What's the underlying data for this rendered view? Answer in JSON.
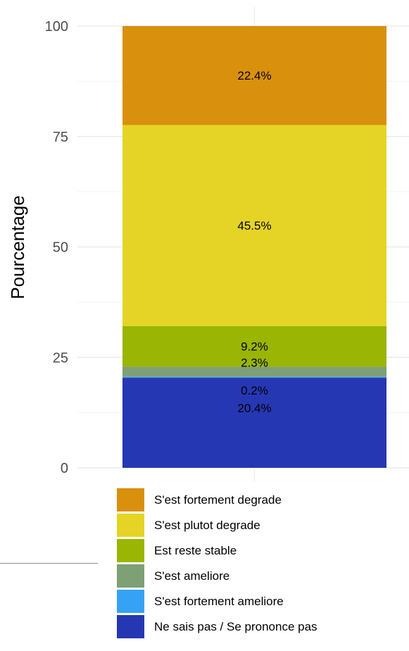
{
  "chart_data": {
    "type": "bar",
    "stacked": true,
    "ylabel": "Pourcentage",
    "xlabel": "",
    "ylim": [
      0,
      100
    ],
    "yticks": [
      0,
      25,
      50,
      75,
      100
    ],
    "grid": true,
    "legend_position": "bottom",
    "series": [
      {
        "name": "Ne sais pas / Se prononce pas",
        "value": 20.4,
        "label": "20.4%",
        "color": "#2637b3"
      },
      {
        "name": "S'est fortement ameliore",
        "value": 0.2,
        "label": "0.2%",
        "color": "#36a2f5"
      },
      {
        "name": "S'est ameliore",
        "value": 2.3,
        "label": "2.3%",
        "color": "#7da075"
      },
      {
        "name": "Est reste stable",
        "value": 9.2,
        "label": "9.2%",
        "color": "#9ab503"
      },
      {
        "name": "S'est plutot degrade",
        "value": 45.5,
        "label": "45.5%",
        "color": "#e5d425"
      },
      {
        "name": "S'est fortement degrade",
        "value": 22.4,
        "label": "22.4%",
        "color": "#d9900c"
      }
    ],
    "legend_order": [
      "S'est fortement degrade",
      "S'est plutot degrade",
      "Est reste stable",
      "S'est ameliore",
      "S'est fortement ameliore",
      "Ne sais pas / Se prononce pas"
    ]
  }
}
